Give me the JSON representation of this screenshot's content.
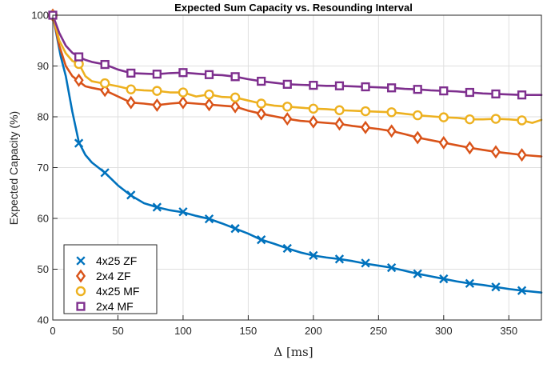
{
  "chart_data": {
    "type": "line",
    "title": "Expected Sum Capacity vs. Resounding Interval",
    "xlabel": "Δ [ms]",
    "ylabel": "Expected Capacity (%)",
    "xlim": [
      0,
      375
    ],
    "ylim": [
      40,
      100
    ],
    "xticks": [
      0,
      50,
      100,
      150,
      200,
      250,
      300,
      350
    ],
    "yticks": [
      40,
      50,
      60,
      70,
      80,
      90,
      100
    ],
    "grid": true,
    "legend_position": "bottom-left",
    "series": [
      {
        "name": "4x25 ZF",
        "color": "#0072BD",
        "marker": "x",
        "line": [
          [
            0,
            100
          ],
          [
            3,
            96
          ],
          [
            6,
            92
          ],
          [
            10,
            88
          ],
          [
            15,
            81
          ],
          [
            20,
            75
          ],
          [
            25,
            72.5
          ],
          [
            30,
            71
          ],
          [
            35,
            70
          ],
          [
            40,
            69
          ],
          [
            50,
            66.5
          ],
          [
            60,
            64.5
          ],
          [
            70,
            63
          ],
          [
            80,
            62.2
          ],
          [
            90,
            61.6
          ],
          [
            100,
            61.2
          ],
          [
            110,
            60.5
          ],
          [
            120,
            59.9
          ],
          [
            130,
            59
          ],
          [
            140,
            58
          ],
          [
            150,
            57
          ],
          [
            160,
            55.8
          ],
          [
            170,
            55
          ],
          [
            180,
            54.1
          ],
          [
            190,
            53.3
          ],
          [
            200,
            52.7
          ],
          [
            210,
            52.3
          ],
          [
            220,
            52
          ],
          [
            230,
            51.6
          ],
          [
            240,
            51.1
          ],
          [
            250,
            50.7
          ],
          [
            260,
            50.3
          ],
          [
            270,
            49.7
          ],
          [
            280,
            49.1
          ],
          [
            290,
            48.6
          ],
          [
            300,
            48.1
          ],
          [
            310,
            47.6
          ],
          [
            320,
            47.2
          ],
          [
            330,
            46.9
          ],
          [
            340,
            46.5
          ],
          [
            350,
            46.1
          ],
          [
            360,
            45.8
          ],
          [
            375,
            45.4
          ]
        ],
        "markers": [
          [
            0,
            100
          ],
          [
            20,
            74.8
          ],
          [
            40,
            69
          ],
          [
            60,
            64.6
          ],
          [
            80,
            62.2
          ],
          [
            100,
            61.3
          ],
          [
            120,
            59.9
          ],
          [
            140,
            58
          ],
          [
            160,
            55.8
          ],
          [
            180,
            54.1
          ],
          [
            200,
            52.7
          ],
          [
            220,
            52
          ],
          [
            240,
            51.2
          ],
          [
            260,
            50.3
          ],
          [
            280,
            49.1
          ],
          [
            300,
            48.1
          ],
          [
            320,
            47.2
          ],
          [
            340,
            46.5
          ],
          [
            360,
            45.8
          ]
        ]
      },
      {
        "name": "2x4 ZF",
        "color": "#D95319",
        "marker": "diamond",
        "line": [
          [
            0,
            100
          ],
          [
            5,
            94
          ],
          [
            10,
            90
          ],
          [
            15,
            88
          ],
          [
            20,
            87
          ],
          [
            25,
            86
          ],
          [
            30,
            85.7
          ],
          [
            40,
            85.2
          ],
          [
            50,
            84
          ],
          [
            60,
            82.8
          ],
          [
            70,
            82.6
          ],
          [
            80,
            82.3
          ],
          [
            90,
            82.6
          ],
          [
            100,
            82.8
          ],
          [
            110,
            82.6
          ],
          [
            120,
            82.4
          ],
          [
            130,
            82.2
          ],
          [
            140,
            82
          ],
          [
            150,
            81.2
          ],
          [
            160,
            80.6
          ],
          [
            170,
            80.1
          ],
          [
            180,
            79.6
          ],
          [
            190,
            79.2
          ],
          [
            200,
            79
          ],
          [
            210,
            78.8
          ],
          [
            220,
            78.6
          ],
          [
            230,
            78.2
          ],
          [
            240,
            77.9
          ],
          [
            250,
            77.6
          ],
          [
            260,
            77.2
          ],
          [
            270,
            76.6
          ],
          [
            280,
            75.9
          ],
          [
            290,
            75.4
          ],
          [
            300,
            74.9
          ],
          [
            310,
            74.4
          ],
          [
            320,
            73.9
          ],
          [
            330,
            73.5
          ],
          [
            340,
            73.1
          ],
          [
            350,
            72.8
          ],
          [
            360,
            72.5
          ],
          [
            375,
            72.2
          ]
        ],
        "markers": [
          [
            0,
            100
          ],
          [
            20,
            87.2
          ],
          [
            40,
            85.2
          ],
          [
            60,
            82.8
          ],
          [
            80,
            82.3
          ],
          [
            100,
            82.8
          ],
          [
            120,
            82.4
          ],
          [
            140,
            82
          ],
          [
            160,
            80.6
          ],
          [
            180,
            79.6
          ],
          [
            200,
            79
          ],
          [
            220,
            78.6
          ],
          [
            240,
            77.9
          ],
          [
            260,
            77.2
          ],
          [
            280,
            75.9
          ],
          [
            300,
            74.9
          ],
          [
            320,
            73.9
          ],
          [
            340,
            73.1
          ],
          [
            360,
            72.5
          ]
        ]
      },
      {
        "name": "4x25 MF",
        "color": "#EDB120",
        "marker": "circle",
        "line": [
          [
            0,
            100
          ],
          [
            5,
            95
          ],
          [
            10,
            92.5
          ],
          [
            15,
            91
          ],
          [
            20,
            90.5
          ],
          [
            25,
            88
          ],
          [
            30,
            87
          ],
          [
            40,
            86.5
          ],
          [
            50,
            86
          ],
          [
            60,
            85.4
          ],
          [
            70,
            85.2
          ],
          [
            80,
            85.1
          ],
          [
            90,
            84.8
          ],
          [
            100,
            84.8
          ],
          [
            110,
            84
          ],
          [
            120,
            84.4
          ],
          [
            130,
            83.9
          ],
          [
            140,
            83.8
          ],
          [
            150,
            83.2
          ],
          [
            160,
            82.6
          ],
          [
            170,
            82.2
          ],
          [
            180,
            82
          ],
          [
            190,
            81.8
          ],
          [
            200,
            81.6
          ],
          [
            210,
            81.5
          ],
          [
            220,
            81.3
          ],
          [
            230,
            81.2
          ],
          [
            240,
            81.1
          ],
          [
            250,
            81
          ],
          [
            260,
            80.9
          ],
          [
            270,
            80.6
          ],
          [
            280,
            80.3
          ],
          [
            290,
            80.1
          ],
          [
            300,
            79.9
          ],
          [
            310,
            79.8
          ],
          [
            320,
            79.5
          ],
          [
            330,
            79.5
          ],
          [
            340,
            79.6
          ],
          [
            350,
            79.5
          ],
          [
            360,
            79.3
          ],
          [
            368,
            78.8
          ],
          [
            375,
            79.4
          ]
        ],
        "markers": [
          [
            0,
            100
          ],
          [
            20,
            90.4
          ],
          [
            40,
            86.6
          ],
          [
            60,
            85.4
          ],
          [
            80,
            85.1
          ],
          [
            100,
            84.8
          ],
          [
            120,
            84.4
          ],
          [
            140,
            83.8
          ],
          [
            160,
            82.6
          ],
          [
            180,
            82
          ],
          [
            200,
            81.6
          ],
          [
            220,
            81.3
          ],
          [
            240,
            81.1
          ],
          [
            260,
            80.9
          ],
          [
            280,
            80.3
          ],
          [
            300,
            79.9
          ],
          [
            320,
            79.5
          ],
          [
            340,
            79.6
          ],
          [
            360,
            79.3
          ]
        ]
      },
      {
        "name": "2x4 MF",
        "color": "#7E2F8E",
        "marker": "square",
        "line": [
          [
            0,
            100
          ],
          [
            5,
            96.5
          ],
          [
            10,
            94
          ],
          [
            15,
            92.6
          ],
          [
            20,
            91.8
          ],
          [
            25,
            91.2
          ],
          [
            30,
            90.8
          ],
          [
            40,
            90.3
          ],
          [
            50,
            89.3
          ],
          [
            60,
            88.6
          ],
          [
            70,
            88.5
          ],
          [
            80,
            88.4
          ],
          [
            90,
            88.6
          ],
          [
            100,
            88.7
          ],
          [
            110,
            88.5
          ],
          [
            120,
            88.3
          ],
          [
            130,
            88.2
          ],
          [
            140,
            87.9
          ],
          [
            150,
            87.4
          ],
          [
            160,
            87
          ],
          [
            170,
            86.7
          ],
          [
            180,
            86.4
          ],
          [
            190,
            86.3
          ],
          [
            200,
            86.2
          ],
          [
            210,
            86.1
          ],
          [
            220,
            86.1
          ],
          [
            230,
            86
          ],
          [
            240,
            85.9
          ],
          [
            250,
            85.8
          ],
          [
            260,
            85.7
          ],
          [
            270,
            85.5
          ],
          [
            280,
            85.4
          ],
          [
            290,
            85.2
          ],
          [
            300,
            85.1
          ],
          [
            310,
            85
          ],
          [
            320,
            84.8
          ],
          [
            330,
            84.6
          ],
          [
            340,
            84.5
          ],
          [
            350,
            84.4
          ],
          [
            360,
            84.3
          ],
          [
            375,
            84.3
          ]
        ],
        "markers": [
          [
            0,
            100
          ],
          [
            20,
            91.8
          ],
          [
            40,
            90.3
          ],
          [
            60,
            88.6
          ],
          [
            80,
            88.4
          ],
          [
            100,
            88.7
          ],
          [
            120,
            88.3
          ],
          [
            140,
            87.9
          ],
          [
            160,
            87
          ],
          [
            180,
            86.4
          ],
          [
            200,
            86.2
          ],
          [
            220,
            86.1
          ],
          [
            240,
            85.9
          ],
          [
            260,
            85.7
          ],
          [
            280,
            85.4
          ],
          [
            300,
            85.1
          ],
          [
            320,
            84.8
          ],
          [
            340,
            84.5
          ],
          [
            360,
            84.3
          ]
        ]
      }
    ]
  }
}
